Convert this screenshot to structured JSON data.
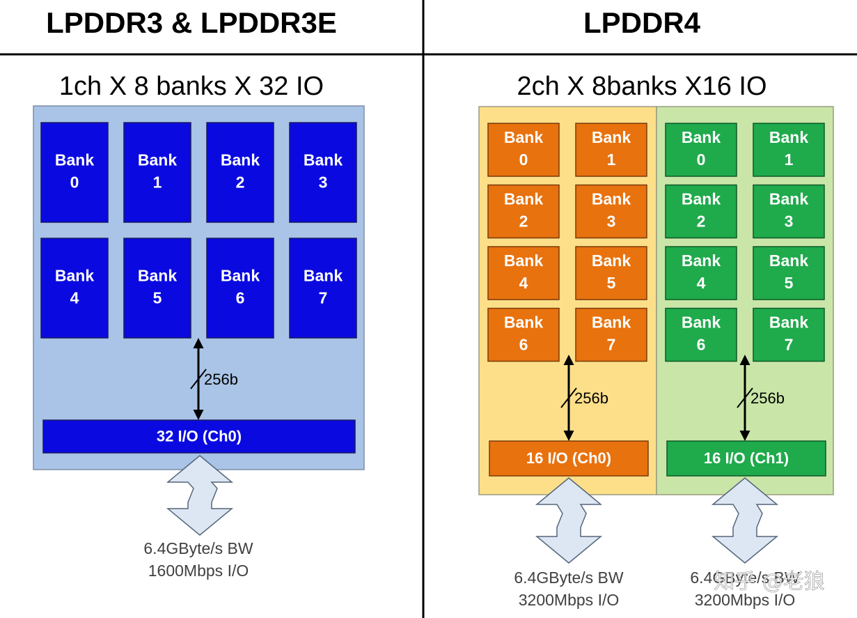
{
  "headers": [
    "LPDDR3 & LPDDR3E",
    "LPDDR4"
  ],
  "left": {
    "subtitle": "1ch X 8 banks X 32 IO",
    "banks": [
      {
        "label": "Bank",
        "number": "0"
      },
      {
        "label": "Bank",
        "number": "1"
      },
      {
        "label": "Bank",
        "number": "2"
      },
      {
        "label": "Bank",
        "number": "3"
      },
      {
        "label": "Bank",
        "number": "4"
      },
      {
        "label": "Bank",
        "number": "5"
      },
      {
        "label": "Bank",
        "number": "6"
      },
      {
        "label": "Bank",
        "number": "7"
      }
    ],
    "bus": "256b",
    "io": "32 I/O (Ch0)",
    "bandwidth": "6.4GByte/s BW",
    "rate": "1600Mbps I/O"
  },
  "right": {
    "subtitle": "2ch X 8banks X16 IO",
    "channels": [
      {
        "banks": [
          {
            "label": "Bank",
            "number": "0"
          },
          {
            "label": "Bank",
            "number": "1"
          },
          {
            "label": "Bank",
            "number": "2"
          },
          {
            "label": "Bank",
            "number": "3"
          },
          {
            "label": "Bank",
            "number": "4"
          },
          {
            "label": "Bank",
            "number": "5"
          },
          {
            "label": "Bank",
            "number": "6"
          },
          {
            "label": "Bank",
            "number": "7"
          }
        ],
        "bus": "256b",
        "io": "16 I/O (Ch0)",
        "bandwidth": "6.4GByte/s BW",
        "rate": "3200Mbps I/O"
      },
      {
        "banks": [
          {
            "label": "Bank",
            "number": "0"
          },
          {
            "label": "Bank",
            "number": "1"
          },
          {
            "label": "Bank",
            "number": "2"
          },
          {
            "label": "Bank",
            "number": "3"
          },
          {
            "label": "Bank",
            "number": "4"
          },
          {
            "label": "Bank",
            "number": "5"
          },
          {
            "label": "Bank",
            "number": "6"
          },
          {
            "label": "Bank",
            "number": "7"
          }
        ],
        "bus": "256b",
        "io": "16 I/O (Ch1)",
        "bandwidth": "6.4GByte/s BW",
        "rate": "3200Mbps I/O"
      }
    ]
  },
  "watermark": "知乎 @老狼"
}
